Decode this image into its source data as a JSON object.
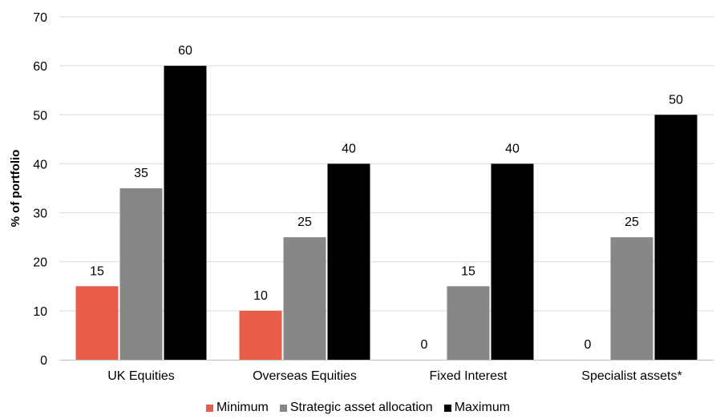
{
  "chart_data": {
    "type": "bar",
    "categories": [
      "UK Equities",
      "Overseas Equities",
      "Fixed Interest",
      "Specialist assets*"
    ],
    "series": [
      {
        "name": "Minimum",
        "values": [
          15,
          10,
          0,
          0
        ],
        "color": "#E85C4A"
      },
      {
        "name": "Strategic asset allocation",
        "values": [
          35,
          25,
          15,
          25
        ],
        "color": "#878787"
      },
      {
        "name": "Maximum",
        "values": [
          60,
          40,
          40,
          50
        ],
        "color": "#000000"
      }
    ],
    "title": "",
    "xlabel": "",
    "ylabel": "% of portfolio",
    "ylim": [
      0,
      70
    ],
    "yticks": [
      0,
      10,
      20,
      30,
      40,
      50,
      60,
      70
    ],
    "grid": true,
    "legend_position": "bottom"
  }
}
